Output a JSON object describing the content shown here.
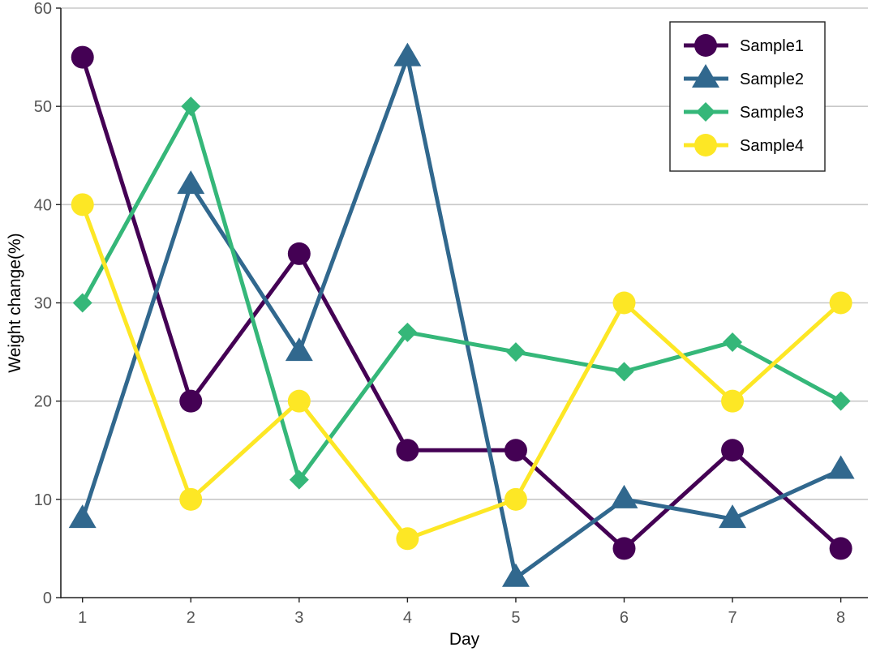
{
  "chart_data": {
    "type": "line",
    "title": "",
    "xlabel": "Day",
    "ylabel": "Weight change(%)",
    "x": [
      1,
      2,
      3,
      4,
      5,
      6,
      7,
      8
    ],
    "x_tick_labels": [
      "1",
      "2",
      "3",
      "4",
      "5",
      "6",
      "7",
      "8"
    ],
    "xlim": [
      0.8,
      8.25
    ],
    "ylim": [
      0,
      60
    ],
    "y_ticks": [
      0,
      10,
      20,
      30,
      40,
      50,
      60
    ],
    "y_tick_labels": [
      "0",
      "10",
      "20",
      "30",
      "40",
      "50",
      "60"
    ],
    "grid": "horizontal",
    "legend_position": "top-right",
    "series": [
      {
        "name": "Sample1",
        "values": [
          55,
          20,
          35,
          15,
          15,
          5,
          15,
          5
        ],
        "color": "#440154",
        "marker": "circle"
      },
      {
        "name": "Sample2",
        "values": [
          8,
          42,
          25,
          55,
          2,
          10,
          8,
          13
        ],
        "color": "#31688e",
        "marker": "triangle"
      },
      {
        "name": "Sample3",
        "values": [
          30,
          50,
          12,
          27,
          25,
          23,
          26,
          20
        ],
        "color": "#35b779",
        "marker": "diamond"
      },
      {
        "name": "Sample4",
        "values": [
          40,
          10,
          20,
          6,
          10,
          30,
          20,
          30
        ],
        "color": "#fde725",
        "marker": "circle"
      }
    ]
  }
}
